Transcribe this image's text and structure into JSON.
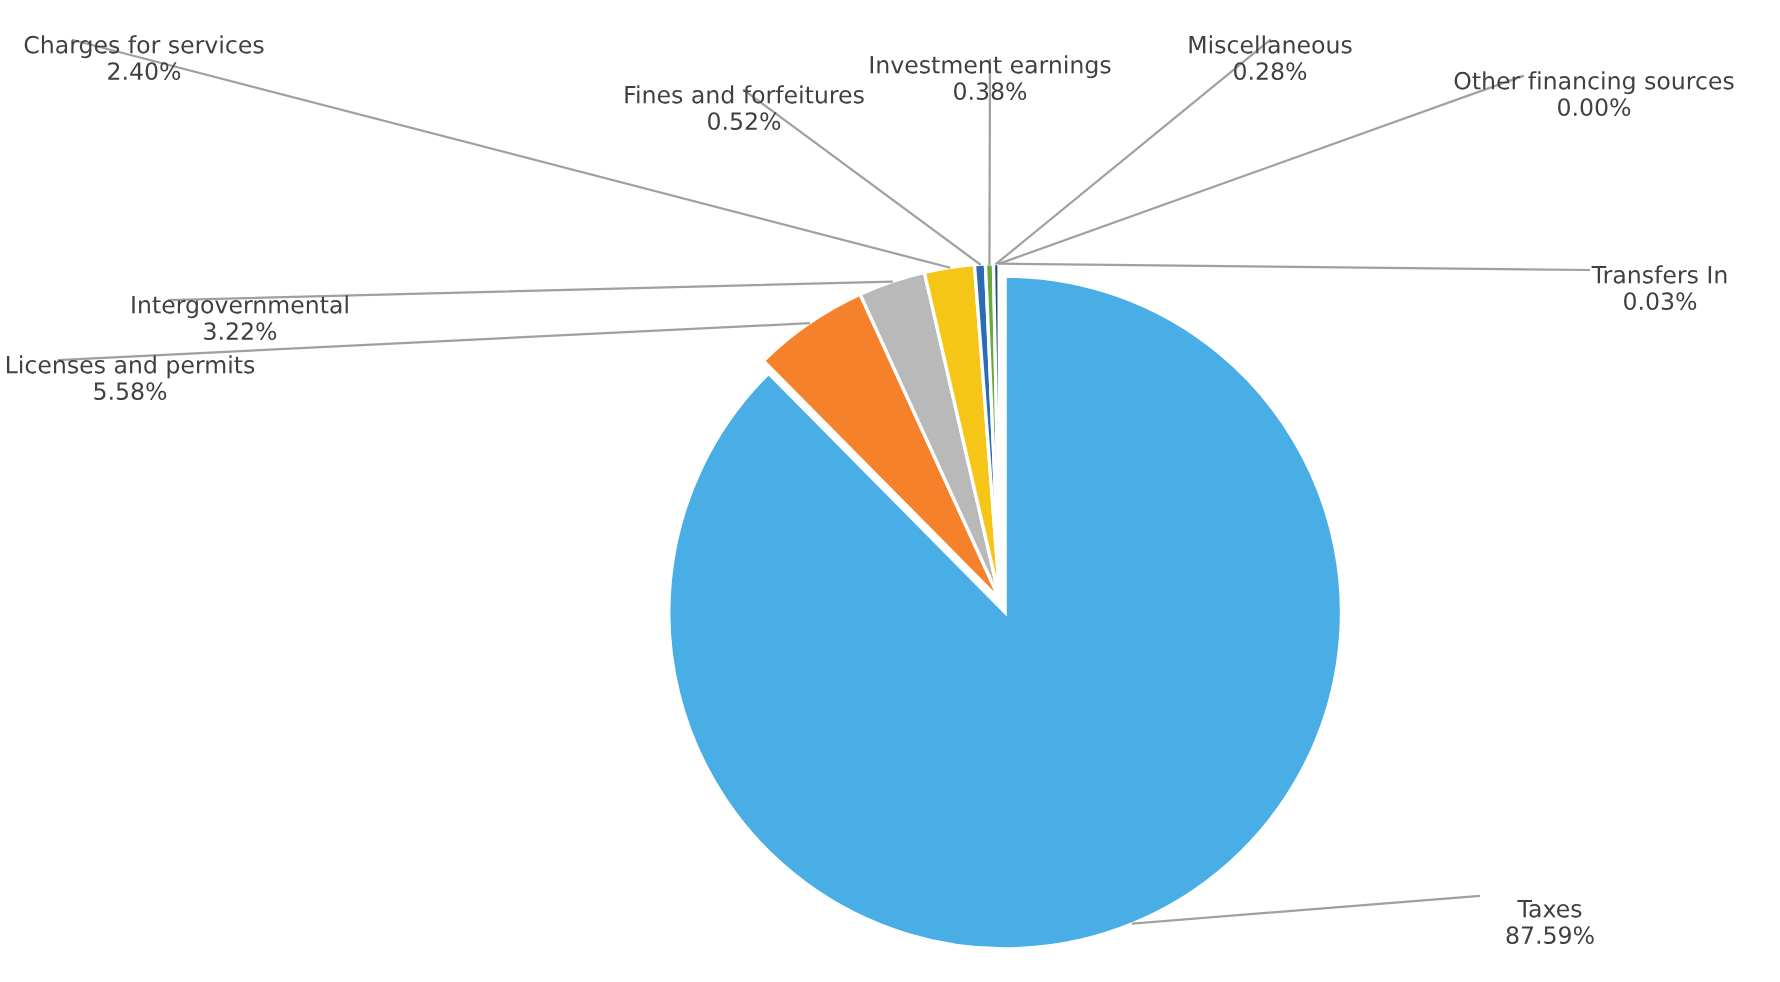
{
  "chart_data": {
    "type": "pie",
    "categories": [
      "Taxes",
      "Licenses and permits",
      "Intergovernmental",
      "Charges for services",
      "Fines and forfeitures",
      "Investment earnings",
      "Miscellaneous",
      "Other financing sources",
      "Transfers In"
    ],
    "values": [
      87.59,
      5.58,
      3.22,
      2.4,
      0.52,
      0.38,
      0.28,
      0.0,
      0.03
    ],
    "colors": [
      "#4aaee6",
      "#f5822a",
      "#b9b9b9",
      "#f5c518",
      "#2a6db5",
      "#6aaa3a",
      "#1f4e79",
      "#9c5a2a",
      "#6b6b6b"
    ],
    "value_labels": [
      "87.59%",
      "5.58%",
      "3.22%",
      "2.40%",
      "0.52%",
      "0.38%",
      "0.28%",
      "0.00%",
      "0.03%"
    ]
  }
}
